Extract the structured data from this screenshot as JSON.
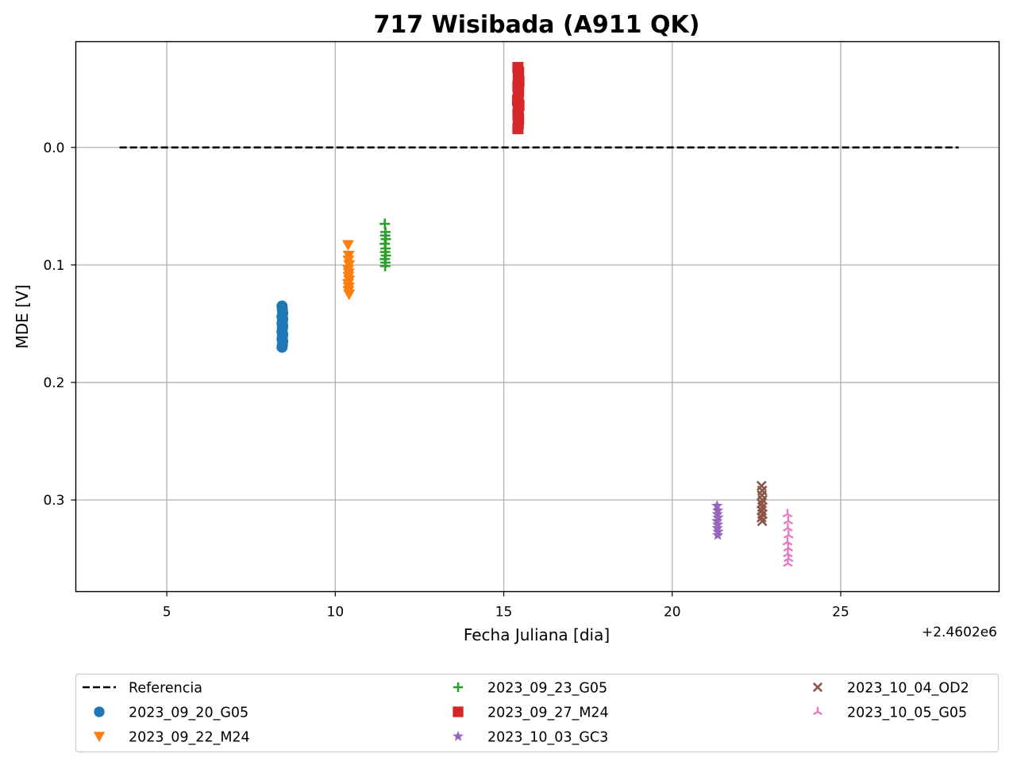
{
  "chart_data": {
    "type": "scatter",
    "title": "717 Wisibada (A911 QK)",
    "xlabel": "Fecha Juliana [dia]",
    "ylabel": "MDE [V]",
    "x_offset_label": "+2.4602e6",
    "x_offset": 2460200,
    "xlim": [
      2.3,
      29.7
    ],
    "ylim": [
      0.378,
      -0.09
    ],
    "y_inverted": true,
    "xticks": [
      5,
      10,
      15,
      20,
      25
    ],
    "xtick_labels": [
      "5",
      "10",
      "15",
      "20",
      "25"
    ],
    "yticks": [
      0.0,
      0.1,
      0.2,
      0.3
    ],
    "ytick_labels": [
      "0.0",
      "0.1",
      "0.2",
      "0.3"
    ],
    "grid": true,
    "legend_position": "below, 3 columns",
    "reference": {
      "name": "Referencia",
      "x": [
        3.6,
        28.5
      ],
      "y": [
        0.0,
        0.0
      ],
      "color": "#000000",
      "style": "dashed"
    },
    "series": [
      {
        "name": "2023_09_20_G05",
        "marker": "circle",
        "color": "#1f77b4",
        "points": [
          [
            8.42,
            0.135
          ],
          [
            8.43,
            0.138
          ],
          [
            8.44,
            0.141
          ],
          [
            8.42,
            0.144
          ],
          [
            8.44,
            0.146
          ],
          [
            8.43,
            0.148
          ],
          [
            8.42,
            0.15
          ],
          [
            8.44,
            0.152
          ],
          [
            8.43,
            0.154
          ],
          [
            8.42,
            0.157
          ],
          [
            8.44,
            0.159
          ],
          [
            8.43,
            0.161
          ],
          [
            8.42,
            0.163
          ],
          [
            8.44,
            0.165
          ],
          [
            8.43,
            0.168
          ],
          [
            8.42,
            0.17
          ]
        ]
      },
      {
        "name": "2023_09_22_M24",
        "marker": "triangle-down",
        "color": "#ff7f0e",
        "points": [
          [
            10.38,
            0.083
          ],
          [
            10.4,
            0.092
          ],
          [
            10.39,
            0.096
          ],
          [
            10.41,
            0.1
          ],
          [
            10.38,
            0.104
          ],
          [
            10.4,
            0.107
          ],
          [
            10.39,
            0.11
          ],
          [
            10.41,
            0.113
          ],
          [
            10.38,
            0.116
          ],
          [
            10.4,
            0.119
          ],
          [
            10.39,
            0.122
          ],
          [
            10.41,
            0.125
          ]
        ]
      },
      {
        "name": "2023_09_23_G05",
        "marker": "plus",
        "color": "#2ca02c",
        "points": [
          [
            11.47,
            0.065
          ],
          [
            11.49,
            0.072
          ],
          [
            11.48,
            0.075
          ],
          [
            11.5,
            0.078
          ],
          [
            11.47,
            0.082
          ],
          [
            11.49,
            0.086
          ],
          [
            11.48,
            0.089
          ],
          [
            11.5,
            0.092
          ],
          [
            11.47,
            0.095
          ],
          [
            11.49,
            0.098
          ],
          [
            11.48,
            0.101
          ]
        ]
      },
      {
        "name": "2023_09_27_M24",
        "marker": "square",
        "color": "#d62728",
        "points": [
          [
            15.42,
            -0.068
          ],
          [
            15.44,
            -0.064
          ],
          [
            15.43,
            -0.06
          ],
          [
            15.45,
            -0.056
          ],
          [
            15.42,
            -0.052
          ],
          [
            15.44,
            -0.048
          ],
          [
            15.43,
            -0.044
          ],
          [
            15.41,
            -0.04
          ],
          [
            15.45,
            -0.036
          ],
          [
            15.43,
            -0.032
          ],
          [
            15.42,
            -0.028
          ],
          [
            15.44,
            -0.024
          ],
          [
            15.43,
            -0.02
          ],
          [
            15.42,
            -0.016
          ]
        ]
      },
      {
        "name": "2023_10_03_GC3",
        "marker": "star",
        "color": "#9467bd",
        "points": [
          [
            21.33,
            0.305
          ],
          [
            21.35,
            0.309
          ],
          [
            21.34,
            0.312
          ],
          [
            21.36,
            0.315
          ],
          [
            21.33,
            0.318
          ],
          [
            21.35,
            0.321
          ],
          [
            21.34,
            0.324
          ],
          [
            21.36,
            0.327
          ],
          [
            21.35,
            0.33
          ]
        ]
      },
      {
        "name": "2023_10_04_OD2",
        "marker": "x",
        "color": "#8c564b",
        "points": [
          [
            22.65,
            0.288
          ],
          [
            22.67,
            0.292
          ],
          [
            22.66,
            0.296
          ],
          [
            22.68,
            0.3
          ],
          [
            22.65,
            0.303
          ],
          [
            22.67,
            0.306
          ],
          [
            22.66,
            0.309
          ],
          [
            22.68,
            0.312
          ],
          [
            22.65,
            0.315
          ],
          [
            22.67,
            0.318
          ]
        ]
      },
      {
        "name": "2023_10_05_G05",
        "marker": "tri-up",
        "color": "#e377c2",
        "points": [
          [
            23.42,
            0.312
          ],
          [
            23.44,
            0.318
          ],
          [
            23.43,
            0.324
          ],
          [
            23.45,
            0.33
          ],
          [
            23.42,
            0.336
          ],
          [
            23.44,
            0.341
          ],
          [
            23.43,
            0.346
          ],
          [
            23.45,
            0.35
          ],
          [
            23.43,
            0.354
          ]
        ]
      }
    ]
  }
}
